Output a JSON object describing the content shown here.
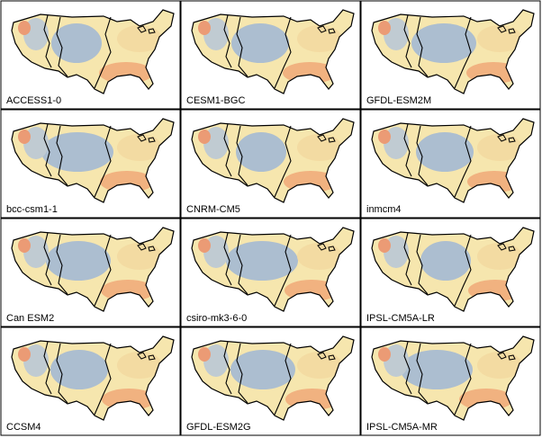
{
  "panels": [
    {
      "label": "ACCESS1-0"
    },
    {
      "label": "CESM1-BGC"
    },
    {
      "label": "GFDL-ESM2M"
    },
    {
      "label": "bcc-csm1-1"
    },
    {
      "label": "CNRM-CM5"
    },
    {
      "label": "inmcm4"
    },
    {
      "label": "Can ESM2"
    },
    {
      "label": "csiro-mk3-6-0"
    },
    {
      "label": "IPSL-CM5A-LR"
    },
    {
      "label": "CCSM4"
    },
    {
      "label": "GFDL-ESM2G"
    },
    {
      "label": "IPSL-CM5A-MR"
    }
  ]
}
